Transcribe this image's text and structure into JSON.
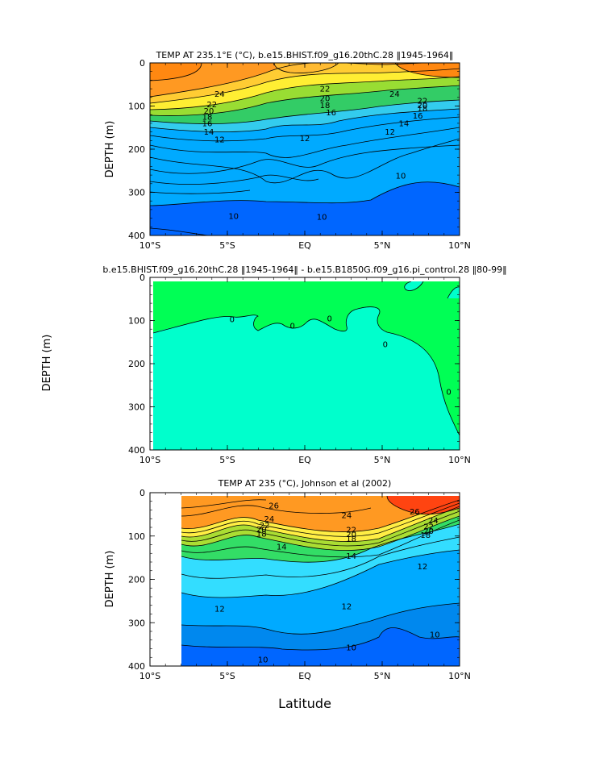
{
  "figure": {
    "xlabel": "Latitude",
    "middle_ylabel": "DEPTH (m)"
  },
  "chart_data": [
    {
      "type": "heatmap",
      "title": "TEMP AT 235.1°E (°C), b.e15.BHIST.f09_g16.20thC.28 ‖1945-1964‖",
      "xlabel": "",
      "ylabel": "DEPTH (m)",
      "x_ticks": [
        "10°S",
        "5°S",
        "EQ",
        "5°N",
        "10°N"
      ],
      "y_ticks": [
        0,
        100,
        200,
        300,
        400
      ],
      "xlim": [
        -10,
        10
      ],
      "ylim": [
        400,
        0
      ],
      "y_inverted": true,
      "contour_labels": [
        {
          "label": "24",
          "lat": -5.5,
          "depth": 72
        },
        {
          "label": "22",
          "lat": -6.0,
          "depth": 96
        },
        {
          "label": "20",
          "lat": -6.2,
          "depth": 111
        },
        {
          "label": "18",
          "lat": -6.3,
          "depth": 125
        },
        {
          "label": "16",
          "lat": -6.3,
          "depth": 140
        },
        {
          "label": "14",
          "lat": -6.2,
          "depth": 160
        },
        {
          "label": "12",
          "lat": -5.5,
          "depth": 178
        },
        {
          "label": "22",
          "lat": 1.3,
          "depth": 60
        },
        {
          "label": "20",
          "lat": 1.3,
          "depth": 82
        },
        {
          "label": "18",
          "lat": 1.3,
          "depth": 98
        },
        {
          "label": "16",
          "lat": 1.7,
          "depth": 115
        },
        {
          "label": "12",
          "lat": 0.0,
          "depth": 175
        },
        {
          "label": "24",
          "lat": 5.8,
          "depth": 72
        },
        {
          "label": "22",
          "lat": 7.6,
          "depth": 88
        },
        {
          "label": "20",
          "lat": 7.6,
          "depth": 98
        },
        {
          "label": "18",
          "lat": 7.6,
          "depth": 106
        },
        {
          "label": "16",
          "lat": 7.3,
          "depth": 122
        },
        {
          "label": "14",
          "lat": 6.4,
          "depth": 140
        },
        {
          "label": "12",
          "lat": 5.5,
          "depth": 160
        },
        {
          "label": "10",
          "lat": 6.2,
          "depth": 262
        },
        {
          "label": "10",
          "lat": -4.6,
          "depth": 355
        },
        {
          "label": "10",
          "lat": 1.1,
          "depth": 357
        }
      ]
    },
    {
      "type": "heatmap",
      "title": "b.e15.BHIST.f09_g16.20thC.28 ‖1945-1964‖ - b.e15.B1850G.f09_g16.pi_control.28 ‖80-99‖",
      "xlabel": "",
      "ylabel": "",
      "x_ticks": [
        "10°S",
        "5°S",
        "EQ",
        "5°N",
        "10°N"
      ],
      "y_ticks": [
        0,
        100,
        200,
        300,
        400
      ],
      "xlim": [
        -10,
        10
      ],
      "ylim": [
        400,
        0
      ],
      "y_inverted": true,
      "contour_labels": [
        {
          "label": "0",
          "lat": -4.7,
          "depth": 97
        },
        {
          "label": "0",
          "lat": -0.8,
          "depth": 112
        },
        {
          "label": "0",
          "lat": 1.6,
          "depth": 95
        },
        {
          "label": "0",
          "lat": 5.2,
          "depth": 155
        },
        {
          "label": "0",
          "lat": 9.3,
          "depth": 265
        }
      ]
    },
    {
      "type": "heatmap",
      "title": "TEMP AT 235 (°C), Johnson et al (2002)",
      "xlabel": "Latitude",
      "ylabel": "DEPTH (m)",
      "x_ticks": [
        "10°S",
        "5°S",
        "EQ",
        "5°N",
        "10°N"
      ],
      "y_ticks": [
        0,
        100,
        200,
        300,
        400
      ],
      "xlim": [
        -10,
        10
      ],
      "ylim": [
        400,
        0
      ],
      "y_inverted": true,
      "data_lat_range": [
        -8,
        10
      ],
      "contour_labels": [
        {
          "label": "26",
          "lat": -2.0,
          "depth": 30
        },
        {
          "label": "24",
          "lat": -2.3,
          "depth": 60
        },
        {
          "label": "22",
          "lat": -2.6,
          "depth": 75
        },
        {
          "label": "20",
          "lat": -2.8,
          "depth": 85
        },
        {
          "label": "18",
          "lat": -2.8,
          "depth": 95
        },
        {
          "label": "14",
          "lat": -1.5,
          "depth": 125
        },
        {
          "label": "24",
          "lat": 2.7,
          "depth": 52
        },
        {
          "label": "22",
          "lat": 3.0,
          "depth": 86
        },
        {
          "label": "20",
          "lat": 3.0,
          "depth": 96
        },
        {
          "label": "18",
          "lat": 3.0,
          "depth": 106
        },
        {
          "label": "14",
          "lat": 3.0,
          "depth": 146
        },
        {
          "label": "26",
          "lat": 7.1,
          "depth": 44
        },
        {
          "label": "24",
          "lat": 8.3,
          "depth": 64
        },
        {
          "label": "22",
          "lat": 8.0,
          "depth": 78
        },
        {
          "label": "20",
          "lat": 8.0,
          "depth": 88
        },
        {
          "label": "18",
          "lat": 7.8,
          "depth": 98
        },
        {
          "label": "12",
          "lat": 7.6,
          "depth": 170
        },
        {
          "label": "12",
          "lat": 2.7,
          "depth": 262
        },
        {
          "label": "12",
          "lat": -5.5,
          "depth": 268
        },
        {
          "label": "10",
          "lat": 3.0,
          "depth": 357
        },
        {
          "label": "10",
          "lat": 8.4,
          "depth": 327
        },
        {
          "label": "10",
          "lat": -2.7,
          "depth": 385
        }
      ]
    }
  ]
}
